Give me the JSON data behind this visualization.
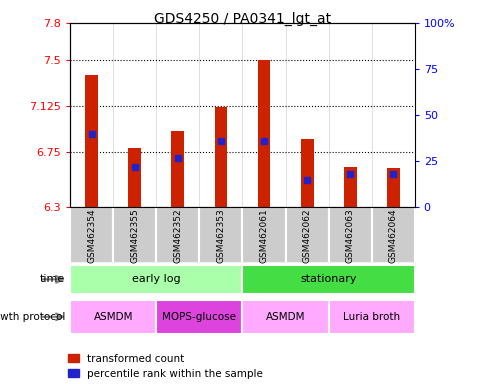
{
  "title": "GDS4250 / PA0341_lgt_at",
  "samples": [
    "GSM462354",
    "GSM462355",
    "GSM462352",
    "GSM462353",
    "GSM462061",
    "GSM462062",
    "GSM462063",
    "GSM462064"
  ],
  "transformed_count": [
    7.38,
    6.78,
    6.92,
    7.12,
    7.5,
    6.86,
    6.63,
    6.62
  ],
  "percentile_rank": [
    40,
    22,
    27,
    36,
    36,
    15,
    18,
    18
  ],
  "y_min": 6.3,
  "y_max": 7.8,
  "y_ticks": [
    6.3,
    6.75,
    7.125,
    7.5,
    7.8
  ],
  "y_tick_labels": [
    "6.3",
    "6.75",
    "7.125",
    "7.5",
    "7.8"
  ],
  "right_y_ticks": [
    0,
    25,
    50,
    75,
    100
  ],
  "right_y_tick_labels": [
    "0",
    "25",
    "50",
    "75",
    "100%"
  ],
  "bar_bottom": 6.3,
  "bar_color": "#cc2200",
  "blue_color": "#2222cc",
  "time_groups": [
    {
      "label": "early log",
      "start": 0,
      "end": 4,
      "color": "#aaffaa"
    },
    {
      "label": "stationary",
      "start": 4,
      "end": 8,
      "color": "#44dd44"
    }
  ],
  "protocol_groups": [
    {
      "label": "ASMDM",
      "start": 0,
      "end": 2,
      "color": "#ffaaff"
    },
    {
      "label": "MOPS-glucose",
      "start": 2,
      "end": 4,
      "color": "#dd44dd"
    },
    {
      "label": "ASMDM",
      "start": 4,
      "end": 6,
      "color": "#ffaaff"
    },
    {
      "label": "Luria broth",
      "start": 6,
      "end": 8,
      "color": "#ffaaff"
    }
  ],
  "sample_bg": "#cccccc",
  "bar_width": 0.3
}
